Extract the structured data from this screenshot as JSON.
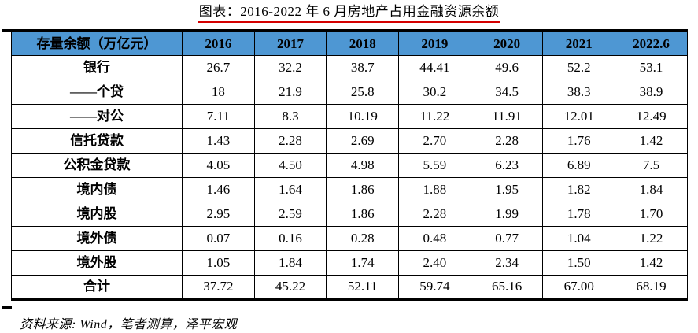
{
  "title": "图表：2016-2022 年 6 月房地产占用金融资源余额",
  "source_note": "资料来源: Wind，笔者测算，泽平宏观",
  "colors": {
    "header_bg": "#4e97d3",
    "title_underline": "#d40000",
    "border": "#000000",
    "background": "#ffffff"
  },
  "table": {
    "header": [
      "存量余额（万亿元）",
      "2016",
      "2017",
      "2018",
      "2019",
      "2020",
      "2021",
      "2022.6"
    ],
    "rows": [
      {
        "label": "银行",
        "values": [
          "26.7",
          "32.2",
          "38.7",
          "44.41",
          "49.6",
          "52.2",
          "53.1"
        ]
      },
      {
        "label": "——个贷",
        "values": [
          "18",
          "21.9",
          "25.8",
          "30.2",
          "34.5",
          "38.3",
          "38.9"
        ]
      },
      {
        "label": "——对公",
        "values": [
          "7.11",
          "8.3",
          "10.19",
          "11.22",
          "11.91",
          "12.01",
          "12.49"
        ]
      },
      {
        "label": "信托贷款",
        "values": [
          "1.43",
          "2.28",
          "2.69",
          "2.70",
          "2.28",
          "1.76",
          "1.42"
        ]
      },
      {
        "label": "公积金贷款",
        "values": [
          "4.05",
          "4.50",
          "4.98",
          "5.59",
          "6.23",
          "6.89",
          "7.5"
        ]
      },
      {
        "label": "境内债",
        "values": [
          "1.46",
          "1.64",
          "1.86",
          "1.88",
          "1.95",
          "1.82",
          "1.84"
        ]
      },
      {
        "label": "境内股",
        "values": [
          "2.95",
          "2.59",
          "1.86",
          "2.28",
          "1.99",
          "1.78",
          "1.70"
        ]
      },
      {
        "label": "境外债",
        "values": [
          "0.07",
          "0.16",
          "0.28",
          "0.48",
          "0.77",
          "1.04",
          "1.22"
        ]
      },
      {
        "label": "境外股",
        "values": [
          "1.05",
          "1.84",
          "1.74",
          "2.40",
          "2.34",
          "1.50",
          "1.42"
        ]
      },
      {
        "label": "合计",
        "values": [
          "37.72",
          "45.22",
          "52.11",
          "59.74",
          "65.16",
          "67.00",
          "68.19"
        ]
      }
    ]
  },
  "chart_data": {
    "type": "table",
    "title": "图表：2016-2022 年 6 月房地产占用金融资源余额",
    "unit": "万亿元",
    "categories": [
      "2016",
      "2017",
      "2018",
      "2019",
      "2020",
      "2021",
      "2022.6"
    ],
    "series": [
      {
        "name": "银行",
        "values": [
          26.7,
          32.2,
          38.7,
          44.41,
          49.6,
          52.2,
          53.1
        ]
      },
      {
        "name": "——个贷",
        "values": [
          18,
          21.9,
          25.8,
          30.2,
          34.5,
          38.3,
          38.9
        ]
      },
      {
        "name": "——对公",
        "values": [
          7.11,
          8.3,
          10.19,
          11.22,
          11.91,
          12.01,
          12.49
        ]
      },
      {
        "name": "信托贷款",
        "values": [
          1.43,
          2.28,
          2.69,
          2.7,
          2.28,
          1.76,
          1.42
        ]
      },
      {
        "name": "公积金贷款",
        "values": [
          4.05,
          4.5,
          4.98,
          5.59,
          6.23,
          6.89,
          7.5
        ]
      },
      {
        "name": "境内债",
        "values": [
          1.46,
          1.64,
          1.86,
          1.88,
          1.95,
          1.82,
          1.84
        ]
      },
      {
        "name": "境内股",
        "values": [
          2.95,
          2.59,
          1.86,
          2.28,
          1.99,
          1.78,
          1.7
        ]
      },
      {
        "name": "境外债",
        "values": [
          0.07,
          0.16,
          0.28,
          0.48,
          0.77,
          1.04,
          1.22
        ]
      },
      {
        "name": "境外股",
        "values": [
          1.05,
          1.84,
          1.74,
          2.4,
          2.34,
          1.5,
          1.42
        ]
      },
      {
        "name": "合计",
        "values": [
          37.72,
          45.22,
          52.11,
          59.74,
          65.16,
          67.0,
          68.19
        ]
      }
    ],
    "source": "Wind，笔者测算，泽平宏观"
  }
}
